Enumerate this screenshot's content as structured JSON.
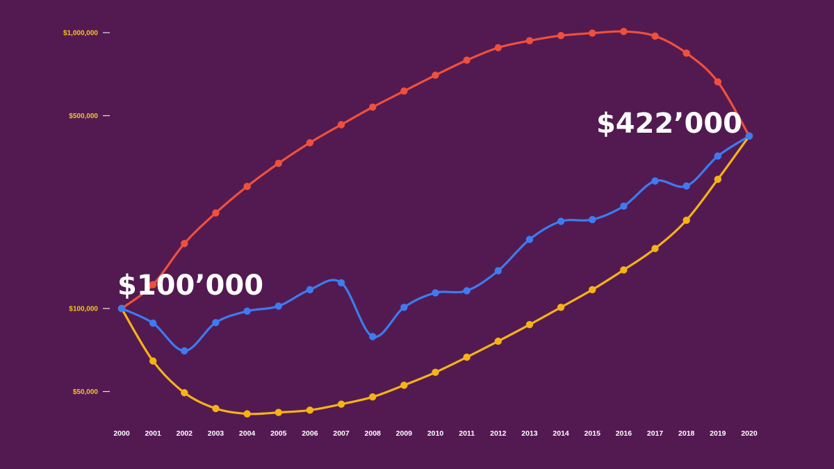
{
  "chart_data": {
    "type": "line",
    "title": "",
    "xlabel": "",
    "ylabel": "",
    "y_scale": "log",
    "ylim": [
      38000,
      1150000
    ],
    "x": [
      2000,
      2001,
      2002,
      2003,
      2004,
      2005,
      2006,
      2007,
      2008,
      2009,
      2010,
      2011,
      2012,
      2013,
      2014,
      2015,
      2016,
      2017,
      2018,
      2019,
      2020
    ],
    "x_tick_labels": [
      "2000",
      "2001",
      "2002",
      "2003",
      "2004",
      "2005",
      "2006",
      "2007",
      "2008",
      "2009",
      "2010",
      "2011",
      "2012",
      "2013",
      "2014",
      "2015",
      "2016",
      "2017",
      "2018",
      "2019",
      "2020"
    ],
    "y_ticks": [
      {
        "value": 50000,
        "label": "$50,000"
      },
      {
        "value": 100000,
        "label": "$100,000"
      },
      {
        "value": 500000,
        "label": "$500,000"
      },
      {
        "value": 1000000,
        "label": "$1,000,000"
      }
    ],
    "grid": false,
    "legend": "none",
    "series": [
      {
        "color": "#f0503a",
        "values": [
          100000,
          122000,
          172000,
          222000,
          277000,
          336000,
          399000,
          464000,
          537000,
          614000,
          701000,
          795000,
          882000,
          935000,
          976000,
          996000,
          1010000,
          972000,
          843000,
          663000,
          422000
        ]
      },
      {
        "color": "#f5b316",
        "values": [
          100000,
          64500,
          49500,
          43400,
          41500,
          42000,
          42800,
          45000,
          47800,
          52700,
          58700,
          66600,
          76100,
          87400,
          101000,
          117000,
          138000,
          165000,
          209000,
          294000,
          422000
        ]
      },
      {
        "color": "#3d7cf0",
        "values": [
          100000,
          88500,
          70200,
          88900,
          97800,
          102000,
          117000,
          124000,
          79100,
          101000,
          114000,
          116000,
          137000,
          178000,
          207000,
          210000,
          235000,
          290000,
          278000,
          357000,
          422000
        ]
      }
    ],
    "annotations": [
      {
        "text": "$100’000",
        "x": 2000,
        "y": 100000
      },
      {
        "text": "$422’000",
        "x": 2020,
        "y": 422000
      }
    ]
  }
}
